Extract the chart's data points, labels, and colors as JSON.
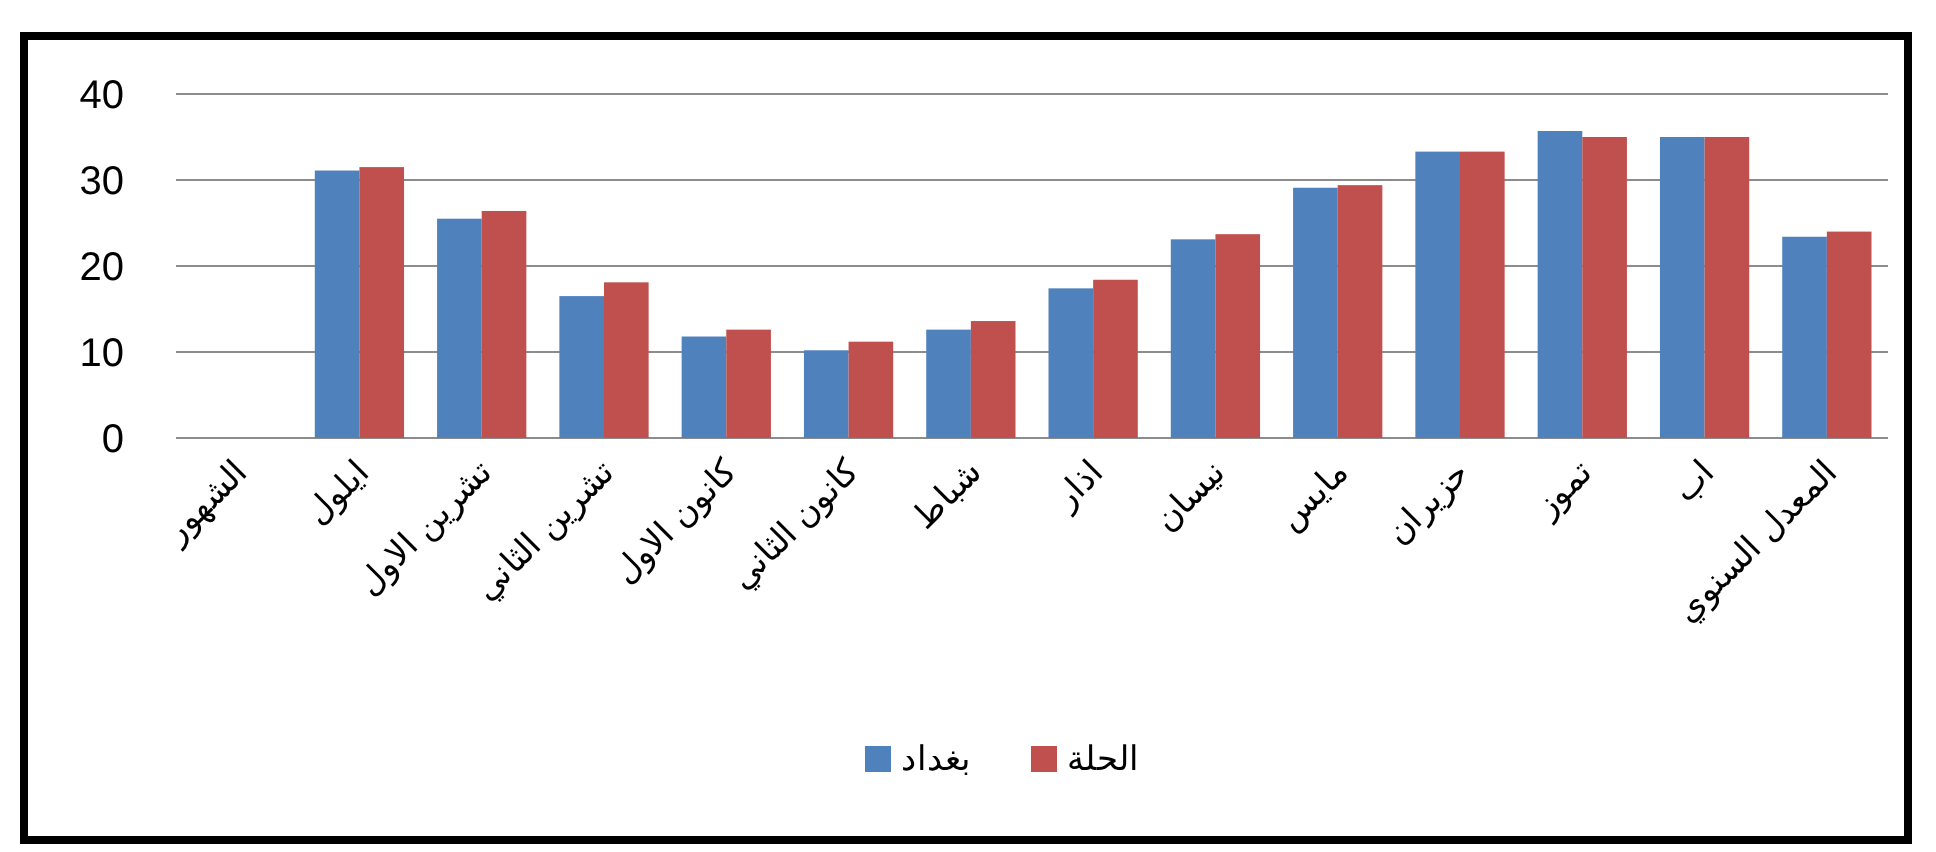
{
  "chart_data": {
    "type": "bar",
    "categories": [
      "الشهور",
      "ايلول",
      "تشرين الاول",
      "تشرين الثاني",
      "كانون الاول",
      "كانون الثاني",
      "شباط",
      "اذار",
      "نيسان",
      "مايس",
      "حزيران",
      "تموز",
      "اب",
      "المعدل السنوي"
    ],
    "series": [
      {
        "name": "بغداد",
        "color": "#4f81bd",
        "values": [
          null,
          31.1,
          25.5,
          16.5,
          11.8,
          10.2,
          12.6,
          17.4,
          23.1,
          29.1,
          33.3,
          35.7,
          35.0,
          23.4
        ]
      },
      {
        "name": "الحلة",
        "color": "#c0504d",
        "values": [
          null,
          31.5,
          26.4,
          18.1,
          12.6,
          11.2,
          13.6,
          18.4,
          23.7,
          29.4,
          33.3,
          35.0,
          35.0,
          24.0
        ]
      }
    ],
    "ylim": [
      0,
      40
    ],
    "yticks": [
      0,
      10,
      20,
      30,
      40
    ],
    "grid": "y",
    "legend": "bottom"
  }
}
